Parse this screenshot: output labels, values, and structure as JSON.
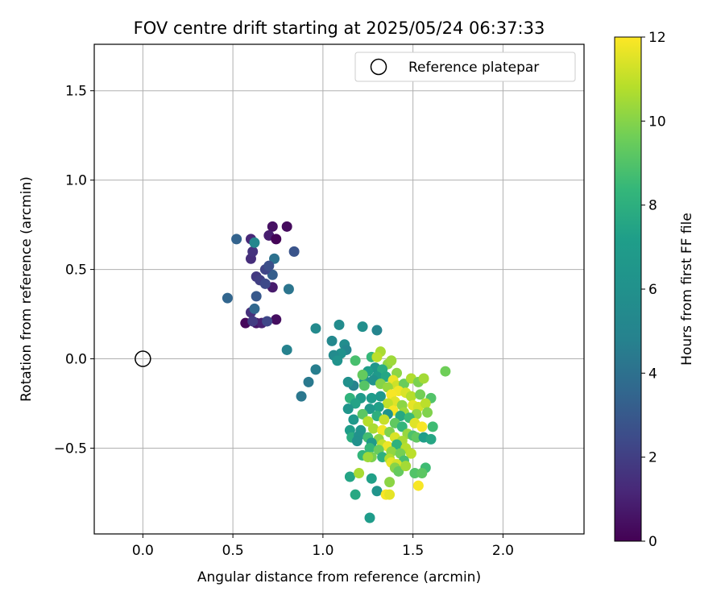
{
  "chart_data": {
    "type": "scatter",
    "title": "FOV centre drift starting at 2025/05/24 06:37:33",
    "xlabel": "Angular distance from reference (arcmin)",
    "ylabel": "Rotation from reference (arcmin)",
    "xlim": [
      -0.27,
      2.45
    ],
    "ylim": [
      -0.98,
      1.76
    ],
    "xticks": [
      {
        "value": 0.0,
        "label": "0.0"
      },
      {
        "value": 0.5,
        "label": "0.5"
      },
      {
        "value": 1.0,
        "label": "1.0"
      },
      {
        "value": 1.5,
        "label": "1.5"
      },
      {
        "value": 2.0,
        "label": "2.0"
      }
    ],
    "yticks": [
      {
        "value": 1.5,
        "label": "1.5"
      },
      {
        "value": 1.0,
        "label": "1.0"
      },
      {
        "value": 0.5,
        "label": "0.5"
      },
      {
        "value": 0.0,
        "label": "0.0"
      },
      {
        "value": -0.5,
        "label": "−0.5"
      }
    ],
    "grid": true,
    "legend": {
      "position": "top-right",
      "entries": [
        {
          "label": "Reference platepar",
          "marker": "open-circle"
        }
      ]
    },
    "reference_point": {
      "x": 0.0,
      "y": 0.0
    },
    "colorbar": {
      "label": "Hours from first FF file",
      "colormap": "viridis",
      "range": [
        0,
        12
      ],
      "ticks": [
        {
          "value": 0,
          "label": "0"
        },
        {
          "value": 2,
          "label": "2"
        },
        {
          "value": 4,
          "label": "4"
        },
        {
          "value": 6,
          "label": "6"
        },
        {
          "value": 8,
          "label": "8"
        },
        {
          "value": 10,
          "label": "10"
        },
        {
          "value": 12,
          "label": "12"
        }
      ]
    },
    "series": [
      {
        "points": [
          {
            "x": 0.57,
            "y": 0.2,
            "h": 0.2
          },
          {
            "x": 0.63,
            "y": 0.2,
            "h": 0.6
          },
          {
            "x": 0.66,
            "y": 0.2,
            "h": 1.0
          },
          {
            "x": 0.6,
            "y": 0.26,
            "h": 1.5
          },
          {
            "x": 0.74,
            "y": 0.22,
            "h": 0.4
          },
          {
            "x": 0.72,
            "y": 0.4,
            "h": 0.8
          },
          {
            "x": 0.6,
            "y": 0.56,
            "h": 1.4
          },
          {
            "x": 0.61,
            "y": 0.6,
            "h": 1.6
          },
          {
            "x": 0.6,
            "y": 0.67,
            "h": 1.2
          },
          {
            "x": 0.52,
            "y": 0.67,
            "h": 3.4
          },
          {
            "x": 0.72,
            "y": 0.74,
            "h": 0.5
          },
          {
            "x": 0.8,
            "y": 0.74,
            "h": 0.3
          },
          {
            "x": 0.7,
            "y": 0.69,
            "h": 0.9
          },
          {
            "x": 0.74,
            "y": 0.67,
            "h": 0.1
          },
          {
            "x": 0.62,
            "y": 0.65,
            "h": 5.2
          },
          {
            "x": 0.73,
            "y": 0.56,
            "h": 4.0
          },
          {
            "x": 0.72,
            "y": 0.47,
            "h": 3.2
          },
          {
            "x": 0.84,
            "y": 0.6,
            "h": 2.8
          },
          {
            "x": 0.68,
            "y": 0.5,
            "h": 2.2
          },
          {
            "x": 0.7,
            "y": 0.52,
            "h": 2.6
          },
          {
            "x": 0.63,
            "y": 0.46,
            "h": 1.8
          },
          {
            "x": 0.65,
            "y": 0.44,
            "h": 2.0
          },
          {
            "x": 0.68,
            "y": 0.42,
            "h": 2.4
          },
          {
            "x": 0.81,
            "y": 0.39,
            "h": 4.2
          },
          {
            "x": 0.47,
            "y": 0.34,
            "h": 3.5
          },
          {
            "x": 0.63,
            "y": 0.35,
            "h": 3.0
          },
          {
            "x": 0.62,
            "y": 0.28,
            "h": 3.6
          },
          {
            "x": 0.69,
            "y": 0.21,
            "h": 2.3
          },
          {
            "x": 0.61,
            "y": 0.21,
            "h": 1.9
          },
          {
            "x": 0.8,
            "y": 0.05,
            "h": 4.8
          },
          {
            "x": 0.96,
            "y": 0.17,
            "h": 5.4
          },
          {
            "x": 1.09,
            "y": 0.19,
            "h": 5.6
          },
          {
            "x": 1.22,
            "y": 0.18,
            "h": 5.8
          },
          {
            "x": 1.3,
            "y": 0.16,
            "h": 5.0
          },
          {
            "x": 1.05,
            "y": 0.1,
            "h": 5.3
          },
          {
            "x": 1.12,
            "y": 0.08,
            "h": 5.7
          },
          {
            "x": 1.13,
            "y": 0.05,
            "h": 5.1
          },
          {
            "x": 1.1,
            "y": 0.03,
            "h": 6.0
          },
          {
            "x": 1.06,
            "y": 0.02,
            "h": 5.5
          },
          {
            "x": 1.08,
            "y": -0.01,
            "h": 6.2
          },
          {
            "x": 0.96,
            "y": -0.06,
            "h": 4.6
          },
          {
            "x": 0.92,
            "y": -0.13,
            "h": 4.4
          },
          {
            "x": 0.88,
            "y": -0.21,
            "h": 4.3
          },
          {
            "x": 1.17,
            "y": -0.15,
            "h": 4.9
          },
          {
            "x": 1.14,
            "y": -0.13,
            "h": 5.9
          },
          {
            "x": 1.23,
            "y": -0.12,
            "h": 6.3
          },
          {
            "x": 1.18,
            "y": -0.01,
            "h": 8.8
          },
          {
            "x": 1.27,
            "y": 0.01,
            "h": 8.4
          },
          {
            "x": 1.32,
            "y": 0.04,
            "h": 10.6
          },
          {
            "x": 1.3,
            "y": 0.01,
            "h": 10.9
          },
          {
            "x": 1.36,
            "y": -0.03,
            "h": 10.2
          },
          {
            "x": 1.38,
            "y": -0.01,
            "h": 10.4
          },
          {
            "x": 1.29,
            "y": -0.05,
            "h": 6.5
          },
          {
            "x": 1.25,
            "y": -0.07,
            "h": 7.2
          },
          {
            "x": 1.33,
            "y": -0.06,
            "h": 7.8
          },
          {
            "x": 1.22,
            "y": -0.09,
            "h": 9.4
          },
          {
            "x": 1.41,
            "y": -0.08,
            "h": 10.1
          },
          {
            "x": 1.3,
            "y": -0.1,
            "h": 6.8
          },
          {
            "x": 1.35,
            "y": -0.1,
            "h": 7.6
          },
          {
            "x": 1.28,
            "y": -0.12,
            "h": 6.1
          },
          {
            "x": 1.39,
            "y": -0.12,
            "h": 11.7
          },
          {
            "x": 1.32,
            "y": -0.14,
            "h": 10.0
          },
          {
            "x": 1.23,
            "y": -0.15,
            "h": 9.1
          },
          {
            "x": 1.41,
            "y": -0.15,
            "h": 11.2
          },
          {
            "x": 1.36,
            "y": -0.16,
            "h": 10.3
          },
          {
            "x": 1.45,
            "y": -0.14,
            "h": 9.5
          },
          {
            "x": 1.49,
            "y": -0.11,
            "h": 10.7
          },
          {
            "x": 1.53,
            "y": -0.13,
            "h": 9.8
          },
          {
            "x": 1.56,
            "y": -0.11,
            "h": 10.5
          },
          {
            "x": 1.68,
            "y": -0.07,
            "h": 9.6
          },
          {
            "x": 1.42,
            "y": -0.18,
            "h": 11.8
          },
          {
            "x": 1.46,
            "y": -0.19,
            "h": 11.4
          },
          {
            "x": 1.38,
            "y": -0.2,
            "h": 11.9
          },
          {
            "x": 1.32,
            "y": -0.21,
            "h": 6.6
          },
          {
            "x": 1.27,
            "y": -0.22,
            "h": 7.0
          },
          {
            "x": 1.21,
            "y": -0.22,
            "h": 6.9
          },
          {
            "x": 1.15,
            "y": -0.22,
            "h": 8.2
          },
          {
            "x": 1.18,
            "y": -0.25,
            "h": 7.4
          },
          {
            "x": 1.49,
            "y": -0.21,
            "h": 10.8
          },
          {
            "x": 1.54,
            "y": -0.2,
            "h": 9.7
          },
          {
            "x": 1.6,
            "y": -0.22,
            "h": 9.0
          },
          {
            "x": 1.4,
            "y": -0.24,
            "h": 11.5
          },
          {
            "x": 1.36,
            "y": -0.25,
            "h": 11.0
          },
          {
            "x": 1.44,
            "y": -0.26,
            "h": 10.1
          },
          {
            "x": 1.5,
            "y": -0.26,
            "h": 11.6
          },
          {
            "x": 1.53,
            "y": -0.27,
            "h": 11.3
          },
          {
            "x": 1.57,
            "y": -0.25,
            "h": 10.9
          },
          {
            "x": 1.31,
            "y": -0.27,
            "h": 7.3
          },
          {
            "x": 1.26,
            "y": -0.28,
            "h": 6.7
          },
          {
            "x": 1.14,
            "y": -0.28,
            "h": 6.4
          },
          {
            "x": 1.39,
            "y": -0.29,
            "h": 11.9
          },
          {
            "x": 1.45,
            "y": -0.3,
            "h": 10.4
          },
          {
            "x": 1.22,
            "y": -0.31,
            "h": 9.2
          },
          {
            "x": 1.3,
            "y": -0.32,
            "h": 8.0
          },
          {
            "x": 1.36,
            "y": -0.31,
            "h": 6.2
          },
          {
            "x": 1.43,
            "y": -0.32,
            "h": 7.7
          },
          {
            "x": 1.52,
            "y": -0.31,
            "h": 10.2
          },
          {
            "x": 1.58,
            "y": -0.3,
            "h": 9.9
          },
          {
            "x": 1.48,
            "y": -0.33,
            "h": 8.5
          },
          {
            "x": 1.17,
            "y": -0.34,
            "h": 6.6
          },
          {
            "x": 1.25,
            "y": -0.35,
            "h": 10.8
          },
          {
            "x": 1.34,
            "y": -0.34,
            "h": 11.1
          },
          {
            "x": 1.4,
            "y": -0.36,
            "h": 9.3
          },
          {
            "x": 1.51,
            "y": -0.36,
            "h": 11.5
          },
          {
            "x": 1.55,
            "y": -0.38,
            "h": 11.9
          },
          {
            "x": 1.61,
            "y": -0.38,
            "h": 8.6
          },
          {
            "x": 1.44,
            "y": -0.38,
            "h": 8.3
          },
          {
            "x": 1.15,
            "y": -0.4,
            "h": 7.1
          },
          {
            "x": 1.21,
            "y": -0.4,
            "h": 6.5
          },
          {
            "x": 1.28,
            "y": -0.39,
            "h": 10.6
          },
          {
            "x": 1.33,
            "y": -0.4,
            "h": 11.8
          },
          {
            "x": 1.37,
            "y": -0.41,
            "h": 9.9
          },
          {
            "x": 1.47,
            "y": -0.42,
            "h": 10.3
          },
          {
            "x": 1.16,
            "y": -0.44,
            "h": 7.9
          },
          {
            "x": 1.2,
            "y": -0.43,
            "h": 6.1
          },
          {
            "x": 1.25,
            "y": -0.44,
            "h": 8.7
          },
          {
            "x": 1.31,
            "y": -0.45,
            "h": 10.1
          },
          {
            "x": 1.4,
            "y": -0.44,
            "h": 11.4
          },
          {
            "x": 1.44,
            "y": -0.46,
            "h": 10.6
          },
          {
            "x": 1.5,
            "y": -0.43,
            "h": 8.9
          },
          {
            "x": 1.52,
            "y": -0.44,
            "h": 9.3
          },
          {
            "x": 1.56,
            "y": -0.44,
            "h": 7.2
          },
          {
            "x": 1.6,
            "y": -0.45,
            "h": 7.6
          },
          {
            "x": 1.19,
            "y": -0.46,
            "h": 6.0
          },
          {
            "x": 1.27,
            "y": -0.47,
            "h": 6.8
          },
          {
            "x": 1.33,
            "y": -0.48,
            "h": 11.0
          },
          {
            "x": 1.36,
            "y": -0.49,
            "h": 11.7
          },
          {
            "x": 1.41,
            "y": -0.48,
            "h": 8.1
          },
          {
            "x": 1.46,
            "y": -0.5,
            "h": 10.8
          },
          {
            "x": 1.26,
            "y": -0.5,
            "h": 8.4
          },
          {
            "x": 1.31,
            "y": -0.51,
            "h": 9.5
          },
          {
            "x": 1.38,
            "y": -0.52,
            "h": 10.2
          },
          {
            "x": 1.43,
            "y": -0.53,
            "h": 9.7
          },
          {
            "x": 1.49,
            "y": -0.53,
            "h": 10.9
          },
          {
            "x": 1.22,
            "y": -0.54,
            "h": 8.3
          },
          {
            "x": 1.27,
            "y": -0.55,
            "h": 9.8
          },
          {
            "x": 1.33,
            "y": -0.55,
            "h": 8.0
          },
          {
            "x": 1.37,
            "y": -0.56,
            "h": 10.7
          },
          {
            "x": 1.45,
            "y": -0.57,
            "h": 8.8
          },
          {
            "x": 1.25,
            "y": -0.55,
            "h": 10.4
          },
          {
            "x": 1.38,
            "y": -0.58,
            "h": 11.6
          },
          {
            "x": 1.41,
            "y": -0.59,
            "h": 11.3
          },
          {
            "x": 1.4,
            "y": -0.61,
            "h": 10.0
          },
          {
            "x": 1.42,
            "y": -0.63,
            "h": 9.4
          },
          {
            "x": 1.46,
            "y": -0.6,
            "h": 10.5
          },
          {
            "x": 1.57,
            "y": -0.61,
            "h": 8.6
          },
          {
            "x": 1.51,
            "y": -0.64,
            "h": 9.0
          },
          {
            "x": 1.55,
            "y": -0.64,
            "h": 9.2
          },
          {
            "x": 1.15,
            "y": -0.66,
            "h": 7.5
          },
          {
            "x": 1.27,
            "y": -0.67,
            "h": 7.3
          },
          {
            "x": 1.37,
            "y": -0.69,
            "h": 10.1
          },
          {
            "x": 1.53,
            "y": -0.71,
            "h": 11.9
          },
          {
            "x": 1.3,
            "y": -0.74,
            "h": 6.3
          },
          {
            "x": 1.35,
            "y": -0.76,
            "h": 11.9
          },
          {
            "x": 1.37,
            "y": -0.76,
            "h": 11.6
          },
          {
            "x": 1.18,
            "y": -0.76,
            "h": 7.7
          },
          {
            "x": 1.26,
            "y": -0.89,
            "h": 7.0
          },
          {
            "x": 1.2,
            "y": -0.64,
            "h": 10.6
          }
        ]
      }
    ]
  }
}
